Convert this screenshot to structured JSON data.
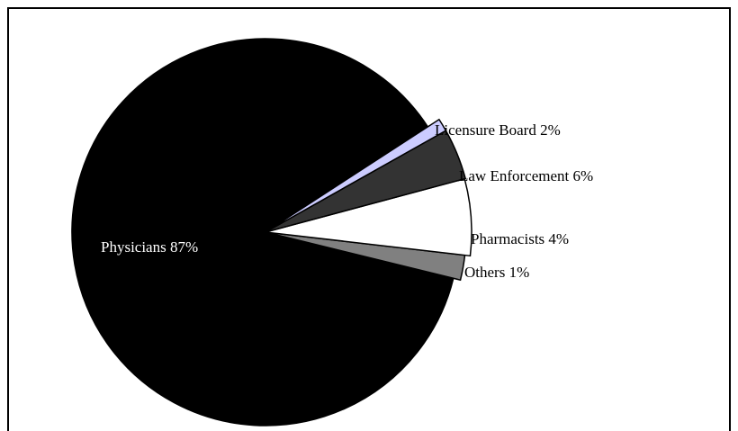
{
  "chart_data": {
    "type": "pie",
    "title": "",
    "slices": [
      {
        "label": "Physicians",
        "value": 87,
        "display": "Physicians 87%",
        "color": "#000000",
        "label_color": "#ffffff"
      },
      {
        "label": "Licensure Board",
        "value": 2,
        "display": "Licensure Board 2%",
        "color": "#808080",
        "label_color": "#000000"
      },
      {
        "label": "Law Enforcement",
        "value": 6,
        "display": "Law Enforcement 6%",
        "color": "#ffffff",
        "label_color": "#000000"
      },
      {
        "label": "Pharmacists",
        "value": 4,
        "display": "Pharmacists 4%",
        "color": "#333333",
        "label_color": "#000000"
      },
      {
        "label": "Others",
        "value": 1,
        "display": "Others 1%",
        "color": "#ccccff",
        "label_color": "#000000"
      }
    ],
    "legend": "none"
  }
}
